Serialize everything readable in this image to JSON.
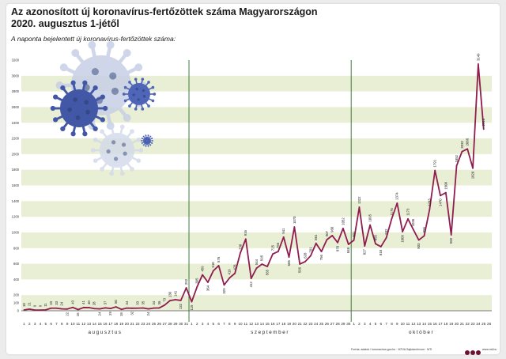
{
  "header": {
    "title_line1": "Az azonosított új koronavírus-fertőzöttek száma Magyarországon",
    "title_line2": "2020. augusztus 1-jétől",
    "subtitle": "A naponta bejelentett új koronavírus-fertőzöttek száma:"
  },
  "footer": {
    "source": "Forrás: adatok / koronavirus.gov.hu · MTVA Sajtóarchívum · MTI",
    "site": "www.mti.hu"
  },
  "colors": {
    "line": "#8f1d4f",
    "band": "#e9efd4",
    "divider": "#2e6b2e",
    "text": "#222222"
  },
  "chart_data": {
    "type": "line",
    "title": "Az azonosított új koronavírus-fertőzöttek száma Magyarországon 2020. augusztus 1-jétől",
    "ylabel": "A naponta bejelentett új koronavírus-fertőzöttek száma:",
    "ylim": [
      0,
      3200
    ],
    "yticks": [
      0,
      100,
      200,
      400,
      600,
      800,
      1000,
      1200,
      1400,
      1600,
      1800,
      2000,
      2200,
      2400,
      2600,
      2800,
      3000,
      3200
    ],
    "grid": "banded",
    "months": [
      {
        "name": "augusztus",
        "days": [
          "1",
          "2",
          "3",
          "4",
          "5",
          "6",
          "7",
          "8",
          "9",
          "10",
          "11",
          "12",
          "13",
          "14",
          "15",
          "16",
          "17",
          "18",
          "19",
          "20",
          "21",
          "22",
          "23",
          "24",
          "25",
          "26",
          "27",
          "28",
          "29",
          "30",
          "31"
        ]
      },
      {
        "name": "szeptember",
        "days": [
          "1",
          "2",
          "3",
          "4",
          "5",
          "6",
          "7",
          "8",
          "9",
          "10",
          "11",
          "12",
          "13",
          "14",
          "15",
          "16",
          "17",
          "18",
          "19",
          "20",
          "21",
          "22",
          "23",
          "24",
          "25",
          "26",
          "27",
          "28",
          "29",
          "30"
        ]
      },
      {
        "name": "október",
        "days": [
          "1",
          "2",
          "3",
          "4",
          "5",
          "6",
          "7",
          "8",
          "9",
          "10",
          "11",
          "12",
          "13",
          "14",
          "15",
          "16",
          "17",
          "18",
          "19",
          "20",
          "21",
          "22",
          "23",
          "24",
          "25",
          "26"
        ]
      }
    ],
    "series": [
      {
        "name": "új fertőzöttek",
        "values": [
          10,
          21,
          9,
          9,
          11,
          33,
          33,
          24,
          22,
          43,
          15,
          41,
          40,
          28,
          24,
          37,
          29,
          50,
          18,
          34,
          32,
          33,
          35,
          24,
          34,
          36,
          73,
          130,
          141,
          132,
          292,
          115,
          305,
          459,
          364,
          510,
          576,
          329,
          419,
          478,
          738,
          916,
          412,
          544,
          595,
          565,
          725,
          756,
          941,
          685,
          1070,
          596,
          628,
          701,
          861,
          756,
          907,
          960,
          870,
          1052,
          848,
          901,
          1322,
          827,
          1095,
          855,
          818,
          932,
          1176,
          1374,
          1009,
          1173,
          1036,
          903,
          956,
          1293,
          1791,
          1470,
          1508,
          969,
          1852,
          2032,
          2066,
          1820,
          3149,
          2318
        ]
      }
    ],
    "labels": [
      "10",
      "21",
      "9",
      "9",
      "11",
      "33",
      "33",
      "24",
      "22",
      "43",
      "15",
      "41",
      "40",
      "28",
      "24",
      "37",
      "29",
      "50",
      "18",
      "34",
      "32",
      "33",
      "35",
      "24",
      "34",
      "36",
      "73",
      "130",
      "141",
      "132",
      "292",
      "115",
      "305",
      "459",
      "364",
      "510",
      "576",
      "329",
      "419",
      "478",
      "738",
      "916",
      "412",
      "544",
      "595",
      "565",
      "725",
      "756",
      "941",
      "685",
      "1070",
      "596",
      "628",
      "701",
      "861",
      "756",
      "907",
      "960",
      "870",
      "1052",
      "848",
      "901",
      "1322",
      "827",
      "1095",
      "855",
      "818",
      "932",
      "1176",
      "1374",
      "1009",
      "1173",
      "1036",
      "903",
      "956",
      "1293",
      "1791",
      "1470",
      "1508",
      "969",
      "1852",
      "2032",
      "2066",
      "1820",
      "3149",
      "2318"
    ]
  }
}
